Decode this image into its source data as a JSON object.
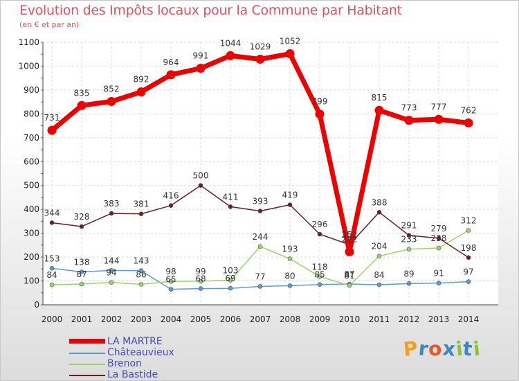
{
  "header": {
    "title": "Evolution des Impôts locaux pour la Commune par Habitant",
    "subtitle": "(en € et par an)"
  },
  "logo": {
    "text": "Proxiti",
    "letters": [
      "P",
      "r",
      "o",
      "x",
      "i",
      "t",
      "i"
    ],
    "colors": [
      "#f0a020",
      "#3a86c8",
      "#e8552a",
      "#3a86c8",
      "#8ac43f",
      "#3a86c8",
      "#8ac43f"
    ]
  },
  "chart_data": {
    "type": "line",
    "title": "Evolution des Impôts locaux pour la Commune par Habitant",
    "ylabel": "(en € et par an)",
    "xlabel": "",
    "categories": [
      "2000",
      "2001",
      "2002",
      "2003",
      "2004",
      "2005",
      "2006",
      "2007",
      "2008",
      "2009",
      "2010",
      "2011",
      "2012",
      "2013",
      "2014"
    ],
    "ylim": [
      0,
      1100
    ],
    "yticks": [
      0,
      100,
      200,
      300,
      400,
      500,
      600,
      700,
      800,
      900,
      1000,
      1100
    ],
    "grid": true,
    "legend_position": "bottom-left",
    "series": [
      {
        "name": "LA MARTRE",
        "color": "#ee0000",
        "values": [
          731,
          835,
          852,
          892,
          964,
          991,
          1044,
          1029,
          1052,
          799,
          222,
          815,
          773,
          777,
          762
        ],
        "labels": [
          "731",
          "835",
          "852",
          "892",
          "964",
          "991",
          "1044",
          "1029",
          "1052",
          "799",
          "222",
          "815",
          "773",
          "777",
          "762"
        ]
      },
      {
        "name": "Châteauvieux",
        "color": "#5b9bd5",
        "values": [
          153,
          138,
          144,
          143,
          65,
          68,
          69,
          77,
          80,
          85,
          87,
          84,
          89,
          91,
          97
        ],
        "labels": [
          "153",
          "138",
          "144",
          "143",
          "65",
          "68",
          "69",
          "77",
          "80",
          "85",
          "87",
          "84",
          "89",
          "91",
          "97"
        ]
      },
      {
        "name": "Brenon",
        "color": "#9ad36a",
        "values": [
          84,
          87,
          94,
          86,
          98,
          99,
          103,
          244,
          193,
          118,
          81,
          204,
          233,
          238,
          312
        ],
        "labels": [
          "84",
          "87",
          "94",
          "86",
          "98",
          "99",
          "103",
          "244",
          "193",
          "118",
          "81",
          "204",
          "233",
          "238",
          "312"
        ]
      },
      {
        "name": "La Bastide",
        "color": "#6b1e24",
        "values": [
          344,
          328,
          383,
          381,
          416,
          500,
          411,
          393,
          419,
          296,
          252,
          388,
          291,
          279,
          198
        ],
        "labels": [
          "344",
          "328",
          "383",
          "381",
          "416",
          "500",
          "411",
          "393",
          "419",
          "296",
          "252",
          "388",
          "291",
          "279",
          "198"
        ]
      }
    ]
  }
}
